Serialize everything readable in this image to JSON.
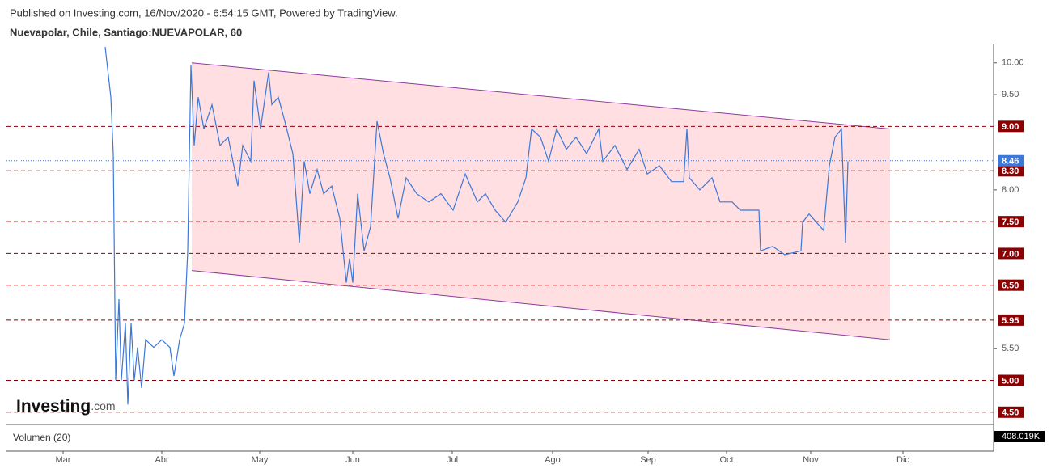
{
  "header": {
    "published": "Published on Investing.com, 16/Nov/2020 - 6:54:15 GMT, Powered by TradingView.",
    "symbol": "Nuevapolar, Chile, Santiago:NUEVAPOLAR, 60"
  },
  "logo": {
    "brand": "Investing",
    "suffix": ".com"
  },
  "chart_data": {
    "type": "line",
    "color": "#3c78d8",
    "x": [
      122,
      129,
      132,
      135,
      139,
      142,
      147,
      150,
      154,
      158,
      162,
      167,
      172,
      182,
      192,
      202,
      207,
      214,
      220,
      224,
      228,
      232,
      237,
      244,
      254,
      264,
      274,
      286,
      292,
      302,
      306,
      314,
      324,
      328,
      336,
      344,
      354,
      362,
      368,
      375,
      384,
      392,
      402,
      412,
      420,
      424,
      428,
      434,
      442,
      450,
      458,
      466,
      474,
      484,
      494,
      507,
      522,
      537,
      552,
      567,
      582,
      592,
      604,
      617,
      632,
      642,
      649,
      660,
      670,
      680,
      692,
      704,
      717,
      732,
      737,
      752,
      767,
      782,
      792,
      807,
      822,
      837,
      841,
      844,
      857,
      872,
      882,
      897,
      907,
      930,
      932,
      947,
      962,
      982,
      984,
      992,
      1010,
      1017,
      1024,
      1032,
      1037,
      1040
    ],
    "values": [
      10.25,
      9.46,
      8.57,
      5.0,
      6.28,
      5.0,
      5.9,
      4.62,
      5.9,
      5.0,
      5.52,
      4.88,
      5.64,
      5.52,
      5.64,
      5.52,
      5.07,
      5.64,
      5.9,
      7.04,
      9.97,
      8.7,
      9.46,
      8.96,
      9.34,
      8.7,
      8.83,
      8.06,
      8.7,
      8.45,
      9.72,
      8.96,
      9.85,
      9.34,
      9.46,
      9.08,
      8.57,
      7.17,
      8.45,
      7.94,
      8.32,
      7.94,
      8.06,
      7.55,
      6.54,
      6.92,
      6.54,
      7.94,
      7.04,
      7.42,
      9.08,
      8.57,
      8.19,
      7.55,
      8.19,
      7.94,
      7.81,
      7.94,
      7.68,
      8.25,
      7.81,
      7.94,
      7.68,
      7.49,
      7.81,
      8.19,
      8.96,
      8.83,
      8.45,
      8.96,
      8.64,
      8.83,
      8.57,
      8.96,
      8.45,
      8.7,
      8.32,
      8.64,
      8.25,
      8.38,
      8.13,
      8.13,
      8.96,
      8.19,
      8.0,
      8.19,
      7.81,
      7.81,
      7.68,
      7.68,
      7.04,
      7.11,
      6.98,
      7.04,
      7.49,
      7.62,
      7.36,
      8.38,
      8.83,
      8.96,
      7.17,
      8.45
    ],
    "xlim": [
      0,
      1220
    ],
    "xticks": [
      {
        "value": 70,
        "label": "Mar"
      },
      {
        "value": 192,
        "label": "Abr"
      },
      {
        "value": 313,
        "label": "May"
      },
      {
        "value": 428,
        "label": "Jun"
      },
      {
        "value": 551,
        "label": "Jul"
      },
      {
        "value": 675,
        "label": "Ago"
      },
      {
        "value": 793,
        "label": "Sep"
      },
      {
        "value": 890,
        "label": "Oct"
      },
      {
        "value": 994,
        "label": "Nov"
      },
      {
        "value": 1108,
        "label": "Dic"
      }
    ],
    "ylim": [
      4.37,
      10.29
    ],
    "yticks": [
      {
        "value": 10,
        "label": "10.00"
      },
      {
        "value": 9.5,
        "label": "9.50"
      },
      {
        "value": 8,
        "label": "8.00"
      },
      {
        "value": 5.5,
        "label": "5.50"
      }
    ],
    "levels": [
      {
        "value": 9,
        "label": "9.00"
      },
      {
        "value": 8.3,
        "label": "8.30"
      },
      {
        "value": 7.5,
        "label": "7.50"
      },
      {
        "value": 7,
        "label": "7.00"
      },
      {
        "value": 6.5,
        "label": "6.50"
      },
      {
        "value": 5.95,
        "label": "5.95"
      },
      {
        "value": 5,
        "label": "5.00"
      },
      {
        "value": 4.5,
        "label": "4.50"
      }
    ],
    "level_color": "#8b0000",
    "last_price": {
      "value": 8.46,
      "label": "8.46"
    },
    "channel": {
      "line_color": "#8e3a9e",
      "fill": "#ffdfe1",
      "upper": {
        "x": [
          229,
          1092
        ],
        "values": [
          10,
          8.96
        ]
      },
      "lower": {
        "x": [
          229,
          1092
        ],
        "values": [
          6.73,
          5.64
        ]
      }
    },
    "volume": {
      "label": "Volumen (20)",
      "last": "408.019K"
    }
  }
}
